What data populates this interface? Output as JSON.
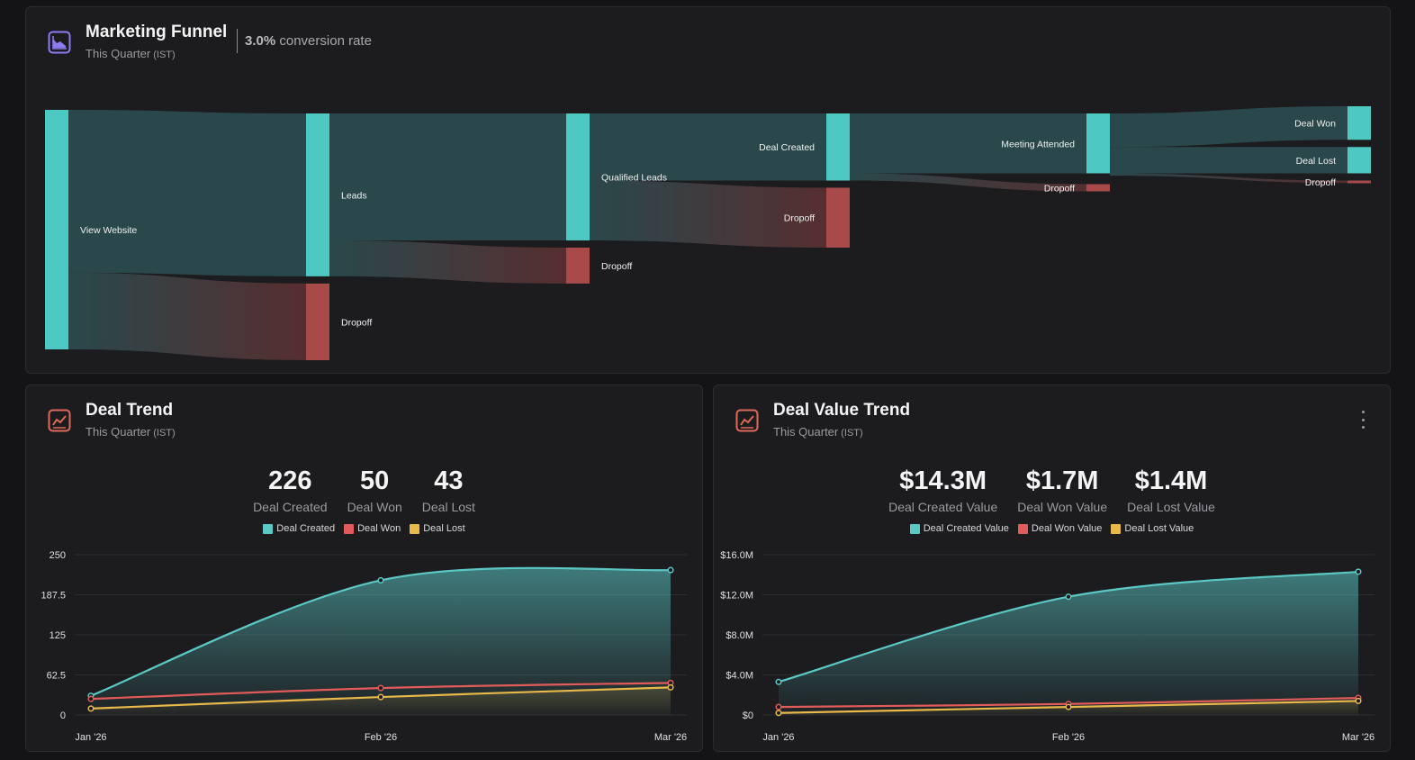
{
  "funnel": {
    "title": "Marketing Funnel",
    "subtitle": "This Quarter",
    "timezone": "(IST)",
    "conversion_value": "3.0%",
    "conversion_label": "conversion rate",
    "icon": "area-chart-icon",
    "stages": [
      {
        "name": "View Website",
        "value": 100
      },
      {
        "name": "Leads",
        "value": 68
      },
      {
        "name": "Dropoff",
        "value": 32
      },
      {
        "name": "Qualified Leads",
        "value": 53
      },
      {
        "name": "Dropoff",
        "value": 15
      },
      {
        "name": "Deal Created",
        "value": 28
      },
      {
        "name": "Dropoff",
        "value": 25
      },
      {
        "name": "Meeting Attended",
        "value": 25
      },
      {
        "name": "Dropoff",
        "value": 3
      },
      {
        "name": "Deal Won",
        "value": 14
      },
      {
        "name": "Deal Lost",
        "value": 11
      },
      {
        "name": "Dropoff",
        "value": 1
      }
    ],
    "links": [
      {
        "from": 0,
        "to": 1
      },
      {
        "from": 0,
        "to": 2
      },
      {
        "from": 1,
        "to": 3
      },
      {
        "from": 1,
        "to": 4
      },
      {
        "from": 3,
        "to": 5
      },
      {
        "from": 3,
        "to": 6
      },
      {
        "from": 5,
        "to": 7
      },
      {
        "from": 5,
        "to": 8
      },
      {
        "from": 7,
        "to": 9
      },
      {
        "from": 7,
        "to": 10
      },
      {
        "from": 7,
        "to": 11
      }
    ]
  },
  "deal_trend": {
    "title": "Deal Trend",
    "subtitle": "This Quarter",
    "timezone": "(IST)",
    "icon": "line-chart-icon",
    "stats": [
      {
        "value": "226",
        "label": "Deal Created"
      },
      {
        "value": "50",
        "label": "Deal Won"
      },
      {
        "value": "43",
        "label": "Deal Lost"
      }
    ],
    "legend": [
      {
        "label": "Deal Created",
        "color": "#5bc8c6"
      },
      {
        "label": "Deal Won",
        "color": "#e25b5b"
      },
      {
        "label": "Deal Lost",
        "color": "#e8b84a"
      }
    ]
  },
  "deal_value_trend": {
    "title": "Deal Value Trend",
    "subtitle": "This Quarter",
    "timezone": "(IST)",
    "icon": "line-chart-icon",
    "menu_icon": "more-vertical-icon",
    "stats": [
      {
        "value": "$14.3M",
        "label": "Deal Created Value"
      },
      {
        "value": "$1.7M",
        "label": "Deal Won Value"
      },
      {
        "value": "$1.4M",
        "label": "Deal Lost Value"
      }
    ],
    "legend": [
      {
        "label": "Deal Created Value",
        "color": "#5bc8c6"
      },
      {
        "label": "Deal Won Value",
        "color": "#e25b5b"
      },
      {
        "label": "Deal Lost Value",
        "color": "#e8b84a"
      }
    ]
  },
  "chart_data": [
    {
      "type": "area",
      "categories": [
        "Jan '26",
        "Feb '26",
        "Mar '26"
      ],
      "ylim": [
        0,
        250
      ],
      "yticks": [
        "0",
        "62.5",
        "125",
        "187.5",
        "250"
      ],
      "series": [
        {
          "name": "Deal Created",
          "values": [
            30,
            210,
            226
          ],
          "color": "#5bc8c6"
        },
        {
          "name": "Deal Won",
          "values": [
            25,
            42,
            50
          ],
          "color": "#e25b5b"
        },
        {
          "name": "Deal Lost",
          "values": [
            10,
            28,
            43
          ],
          "color": "#e8b84a"
        }
      ]
    },
    {
      "type": "area",
      "categories": [
        "Jan '26",
        "Feb '26",
        "Mar '26"
      ],
      "ylim": [
        0,
        16
      ],
      "yticks": [
        "$0",
        "$4.0M",
        "$8.0M",
        "$12.0M",
        "$16.0M"
      ],
      "series": [
        {
          "name": "Deal Created Value",
          "values": [
            3.3,
            11.8,
            14.3
          ],
          "color": "#5bc8c6"
        },
        {
          "name": "Deal Won Value",
          "values": [
            0.8,
            1.1,
            1.7
          ],
          "color": "#e25b5b"
        },
        {
          "name": "Deal Lost Value",
          "values": [
            0.2,
            0.8,
            1.4
          ],
          "color": "#e8b84a"
        }
      ]
    }
  ]
}
